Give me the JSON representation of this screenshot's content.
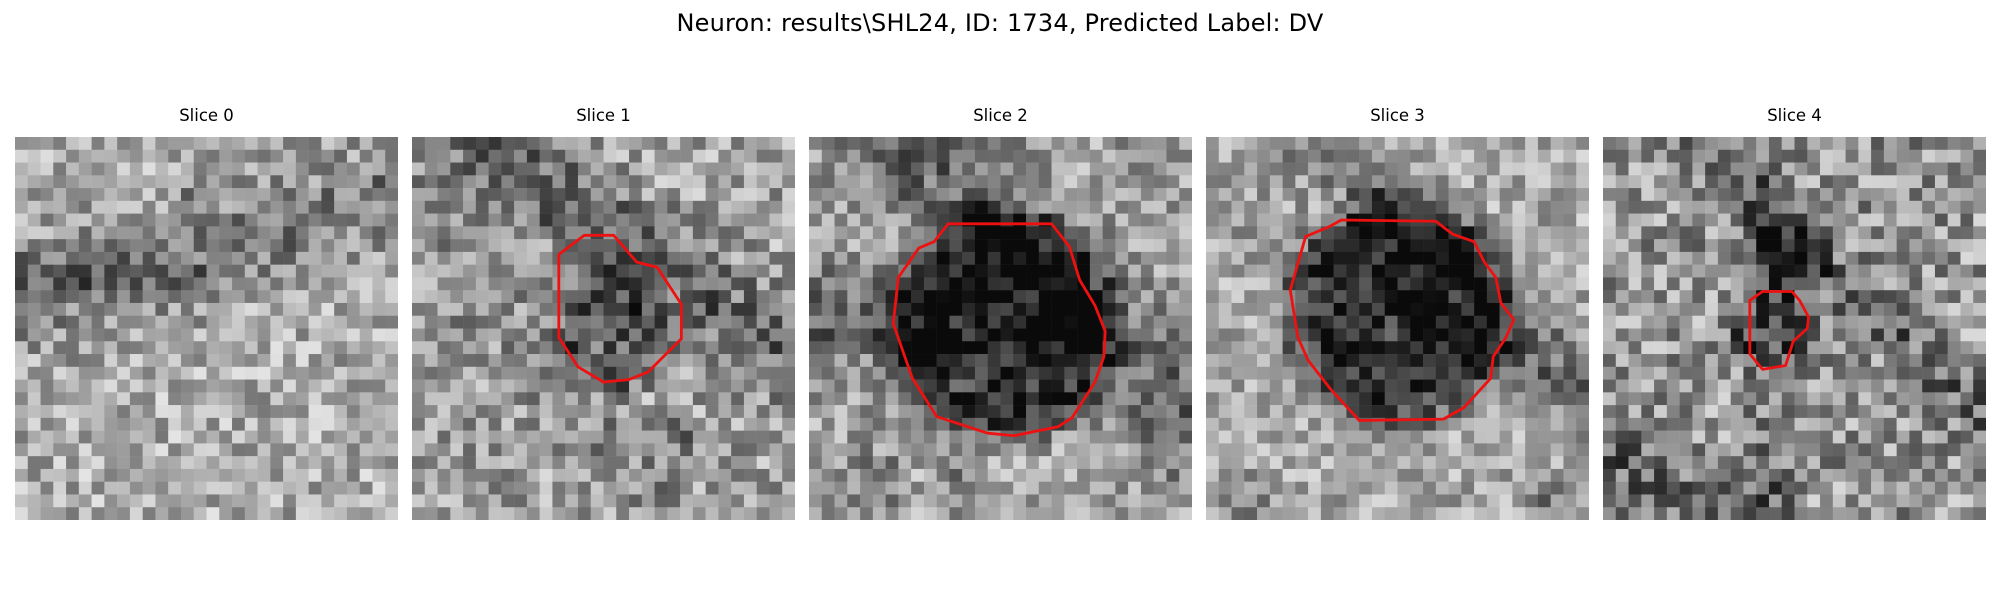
{
  "figure": {
    "title": "Neuron: results\\SHL24, ID: 1734, Predicted Label: DV"
  },
  "panels": [
    {
      "title": "Slice 0",
      "contour": false
    },
    {
      "title": "Slice 1",
      "contour": true
    },
    {
      "title": "Slice 2",
      "contour": true
    },
    {
      "title": "Slice 3",
      "contour": true
    },
    {
      "title": "Slice 4",
      "contour": true
    }
  ],
  "colors": {
    "contour": "#ee1111",
    "background": "#ffffff",
    "colormap": "grayscale"
  }
}
